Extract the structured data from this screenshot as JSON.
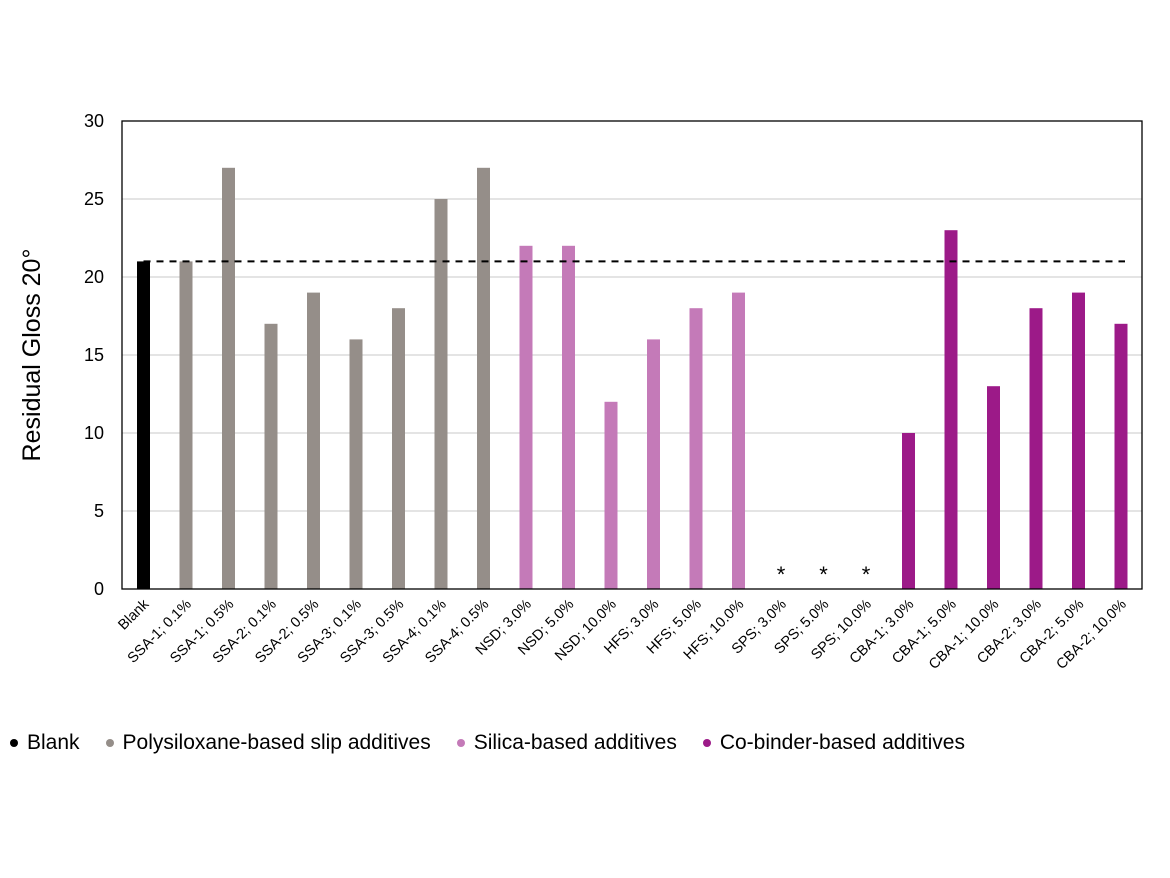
{
  "chart_data": {
    "type": "bar",
    "title": "",
    "xlabel": "",
    "ylabel": "Residual Gloss 20°",
    "ylim": [
      0,
      30
    ],
    "yticks": [
      0,
      5,
      10,
      15,
      20,
      25,
      30
    ],
    "grid": true,
    "reference_line": {
      "value": 21,
      "style": "dashed"
    },
    "legend_position": "bottom",
    "categories": [
      "Blank",
      "SSA-1; 0.1%",
      "SSA-1; 0.5%",
      "SSA-2; 0.1%",
      "SSA-2; 0.5%",
      "SSA-3; 0.1%",
      "SSA-3; 0.5%",
      "SSA-4; 0.1%",
      "SSA-4; 0.5%",
      "NSD; 3.0%",
      "NSD; 5.0%",
      "NSD; 10.0%",
      "HFS; 3.0%",
      "HFS; 5.0%",
      "HFS; 10.0%",
      "SPS; 3.0%",
      "SPS; 5.0%",
      "SPS; 10.0%",
      "CBA-1; 3.0%",
      "CBA-1; 5.0%",
      "CBA-1; 10.0%",
      "CBA-2; 3.0%",
      "CBA-2; 5.0%",
      "CBA-2; 10.0%"
    ],
    "values": [
      21,
      21,
      27,
      17,
      19,
      16,
      18,
      25,
      27,
      22,
      22,
      12,
      16,
      18,
      19,
      null,
      null,
      null,
      10,
      23,
      13,
      18,
      19,
      17
    ],
    "groups": [
      0,
      1,
      1,
      1,
      1,
      1,
      1,
      1,
      1,
      2,
      2,
      2,
      2,
      2,
      2,
      2,
      2,
      2,
      3,
      3,
      3,
      3,
      3,
      3
    ],
    "missing_marker": "*",
    "series": [
      {
        "name": "Blank",
        "color": "#000000"
      },
      {
        "name": "Polysiloxane-based slip additives",
        "color": "#958e89"
      },
      {
        "name": "Silica-based additives",
        "color": "#c47ab8"
      },
      {
        "name": "Co-binder-based additives",
        "color": "#9c1a88"
      }
    ]
  }
}
